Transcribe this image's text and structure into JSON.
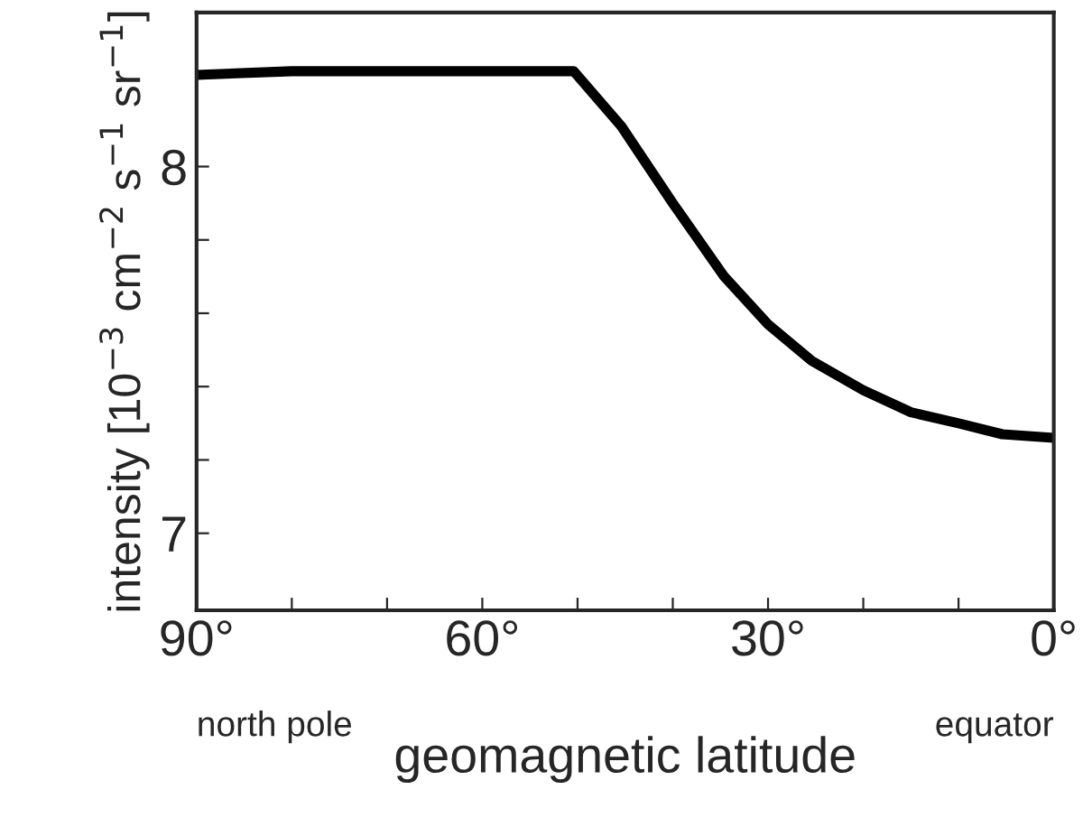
{
  "chart_data": {
    "type": "line",
    "xlabel": "geomagnetic latitude",
    "ylabel": "intensity [10$^{−3}$ cm$^{−2}$ s$^{−1}$ sr$^{−1}$]",
    "x": [
      90,
      80,
      70,
      60,
      50.4,
      45.4,
      40,
      34.6,
      30,
      25.4,
      20,
      15,
      10,
      5.4,
      0
    ],
    "series": [
      {
        "color": "#000000",
        "values": [
          8.25,
          8.26,
          8.26,
          8.26,
          8.26,
          8.11,
          7.9,
          7.7,
          7.57,
          7.47,
          7.39,
          7.33,
          7.3,
          7.27,
          7.26
        ]
      }
    ],
    "xlim": [
      90,
      0
    ],
    "ylim": [
      6.79,
      8.42
    ],
    "xticks": [
      {
        "value": 90,
        "label": "90°"
      },
      {
        "value": 80,
        "label": null
      },
      {
        "value": 70,
        "label": null
      },
      {
        "value": 60,
        "label": "60°"
      },
      {
        "value": 50,
        "label": null
      },
      {
        "value": 40,
        "label": null
      },
      {
        "value": 30,
        "label": "30°"
      },
      {
        "value": 20,
        "label": null
      },
      {
        "value": 10,
        "label": null
      },
      {
        "value": 0,
        "label": "0°"
      }
    ],
    "yticks": [
      7,
      {
        "value": 7.2,
        "label": null
      },
      {
        "value": 7.4,
        "label": null
      },
      {
        "value": 7.6,
        "label": null
      },
      {
        "value": 7.8,
        "label": null
      },
      8
    ],
    "annotations": [
      "north pole",
      "equator"
    ],
    "grid": false,
    "legend": false,
    "marker": "none",
    "line_style": "solid"
  }
}
